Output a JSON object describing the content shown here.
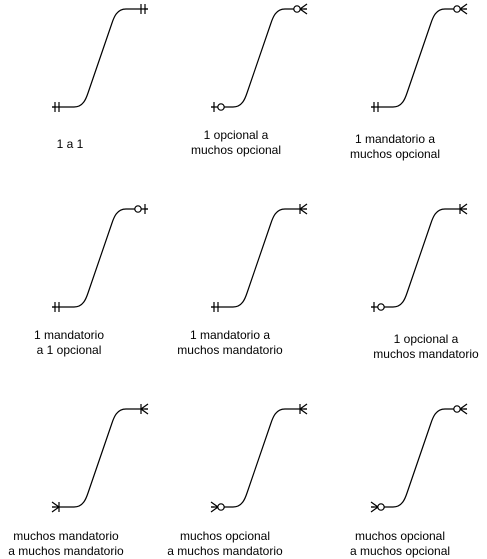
{
  "colors": {
    "stroke": "#000000",
    "background": "#ffffff"
  },
  "relationships": [
    {
      "start_end": "one-mandatory",
      "finish_end": "one-mandatory",
      "label_line1": "1 a 1",
      "label_line2": ""
    },
    {
      "start_end": "one-optional",
      "finish_end": "many-optional",
      "label_line1": "1 opcional a",
      "label_line2": "muchos opcional"
    },
    {
      "start_end": "one-mandatory",
      "finish_end": "many-optional",
      "label_line1": "1 mandatorio a",
      "label_line2": "muchos opcional"
    },
    {
      "start_end": "one-mandatory",
      "finish_end": "one-optional",
      "label_line1": "1 mandatorio",
      "label_line2": "a 1 opcional"
    },
    {
      "start_end": "one-mandatory",
      "finish_end": "many-mandatory",
      "label_line1": "1 mandatorio a",
      "label_line2": "muchos mandatorio"
    },
    {
      "start_end": "one-optional",
      "finish_end": "many-mandatory",
      "label_line1": "1 opcional a",
      "label_line2": "muchos mandatorio"
    },
    {
      "start_end": "many-mandatory",
      "finish_end": "many-mandatory",
      "label_line1": "muchos mandatorio",
      "label_line2": "a muchos mandatorio"
    },
    {
      "start_end": "many-optional",
      "finish_end": "many-mandatory",
      "label_line1": "muchos opcional",
      "label_line2": "a muchos mandatorio"
    },
    {
      "start_end": "many-optional",
      "finish_end": "many-optional",
      "label_line1": "muchos opcional",
      "label_line2": "a muchos opcional"
    }
  ]
}
